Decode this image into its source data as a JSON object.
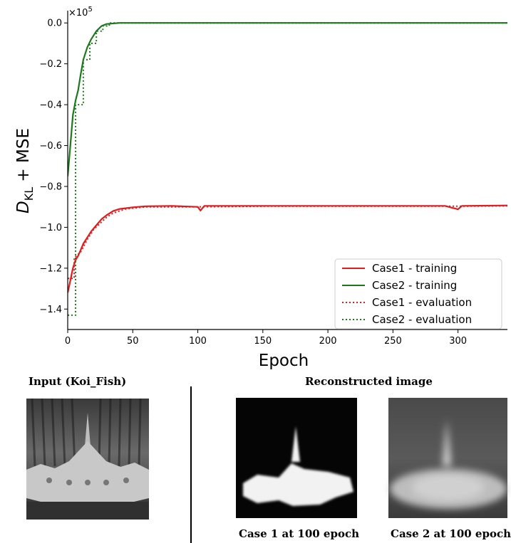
{
  "chart_data": {
    "type": "line",
    "xlabel": "Epoch",
    "ylabel": "D_KL + MSE",
    "ylabel_parts": {
      "main": "D",
      "sub": "KL",
      "rest": " + MSE"
    },
    "y_multiplier": "×10",
    "y_multiplier_exp": "5",
    "xlim": [
      0,
      338
    ],
    "ylim": [
      -1.5,
      0.06
    ],
    "x_ticks": [
      0,
      50,
      100,
      150,
      200,
      250,
      300
    ],
    "y_ticks": [
      -1.4,
      -1.2,
      -1.0,
      -0.8,
      -0.6,
      -0.4,
      -0.2,
      0.0
    ],
    "y_tick_labels": [
      "−1.4",
      "−1.2",
      "−1.0",
      "−0.8",
      "−0.6",
      "−0.4",
      "−0.2",
      "0.0"
    ],
    "legend_position": "lower-right",
    "grid": false,
    "series": [
      {
        "name": "Case1 - training",
        "color": "#e41a1c",
        "style": "solid",
        "points": [
          [
            0,
            -1.32
          ],
          [
            2,
            -1.26
          ],
          [
            4,
            -1.2
          ],
          [
            6,
            -1.16
          ],
          [
            8,
            -1.14
          ],
          [
            10,
            -1.11
          ],
          [
            12,
            -1.08
          ],
          [
            15,
            -1.05
          ],
          [
            18,
            -1.02
          ],
          [
            22,
            -0.99
          ],
          [
            26,
            -0.96
          ],
          [
            30,
            -0.94
          ],
          [
            35,
            -0.92
          ],
          [
            40,
            -0.91
          ],
          [
            50,
            -0.902
          ],
          [
            60,
            -0.897
          ],
          [
            80,
            -0.895
          ],
          [
            100,
            -0.9
          ],
          [
            102,
            -0.918
          ],
          [
            105,
            -0.895
          ],
          [
            150,
            -0.895
          ],
          [
            200,
            -0.895
          ],
          [
            250,
            -0.895
          ],
          [
            290,
            -0.895
          ],
          [
            300,
            -0.912
          ],
          [
            303,
            -0.895
          ],
          [
            338,
            -0.893
          ]
        ]
      },
      {
        "name": "Case2 - training",
        "color": "#1a7a1a",
        "style": "solid",
        "points": [
          [
            0,
            -0.75
          ],
          [
            2,
            -0.6
          ],
          [
            4,
            -0.45
          ],
          [
            6,
            -0.38
          ],
          [
            8,
            -0.33
          ],
          [
            10,
            -0.25
          ],
          [
            12,
            -0.18
          ],
          [
            15,
            -0.12
          ],
          [
            18,
            -0.08
          ],
          [
            22,
            -0.04
          ],
          [
            26,
            -0.015
          ],
          [
            30,
            -0.005
          ],
          [
            40,
            0.0
          ],
          [
            338,
            0.0
          ]
        ]
      },
      {
        "name": "Case1 - evaluation",
        "color": "#e41a1c",
        "style": "dotted",
        "points": [
          [
            0,
            -1.25
          ],
          [
            5,
            -1.25
          ],
          [
            5,
            -1.15
          ],
          [
            10,
            -1.12
          ],
          [
            15,
            -1.06
          ],
          [
            20,
            -1.01
          ],
          [
            25,
            -0.98
          ],
          [
            30,
            -0.95
          ],
          [
            35,
            -0.93
          ],
          [
            45,
            -0.91
          ],
          [
            60,
            -0.9
          ],
          [
            100,
            -0.9
          ],
          [
            150,
            -0.897
          ],
          [
            200,
            -0.897
          ],
          [
            250,
            -0.897
          ],
          [
            300,
            -0.897
          ],
          [
            338,
            -0.895
          ]
        ]
      },
      {
        "name": "Case2 - evaluation",
        "color": "#1a7a1a",
        "style": "dotted",
        "points": [
          [
            0,
            -1.43
          ],
          [
            6,
            -1.43
          ],
          [
            6,
            -0.4
          ],
          [
            12,
            -0.4
          ],
          [
            12,
            -0.18
          ],
          [
            17,
            -0.18
          ],
          [
            17,
            -0.1
          ],
          [
            22,
            -0.1
          ],
          [
            22,
            -0.04
          ],
          [
            27,
            -0.04
          ],
          [
            27,
            -0.015
          ],
          [
            32,
            -0.015
          ],
          [
            32,
            0.0
          ],
          [
            338,
            0.0
          ]
        ]
      }
    ]
  },
  "panels": {
    "input_title": "Input (Koi_Fish)",
    "recon_title": "Reconstructed image",
    "case1_caption": "Case 1 at 100 epoch",
    "case2_caption": "Case 2 at 100 epoch"
  }
}
